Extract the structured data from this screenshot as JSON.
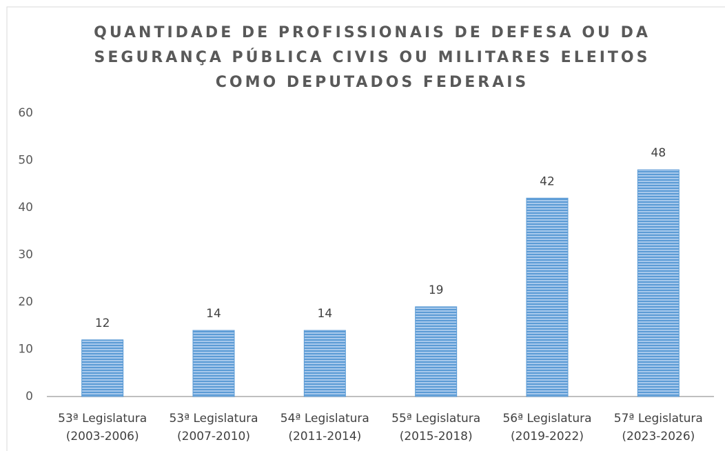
{
  "chart_data": {
    "type": "bar",
    "title": [
      "QUANTIDADE DE PROFISSIONAIS DE DEFESA OU DA",
      "SEGURANÇA PÚBLICA CIVIS OU MILITARES ELEITOS",
      "COMO DEPUTADOS FEDERAIS"
    ],
    "categories": [
      "53ª Legislatura (2003-2006)",
      "53ª Legislatura (2007-2010)",
      "54ª Legislatura (2011-2014)",
      "55ª Legislatura (2015-2018)",
      "56ª Legislatura (2019-2022)",
      "57ª Legislatura (2023-2026)"
    ],
    "values": [
      12,
      14,
      14,
      19,
      42,
      48
    ],
    "color": "#5b9bd5",
    "ylim": [
      0,
      60
    ],
    "yticks": [
      0,
      10,
      20,
      30,
      40,
      50,
      60
    ],
    "grid": false
  }
}
